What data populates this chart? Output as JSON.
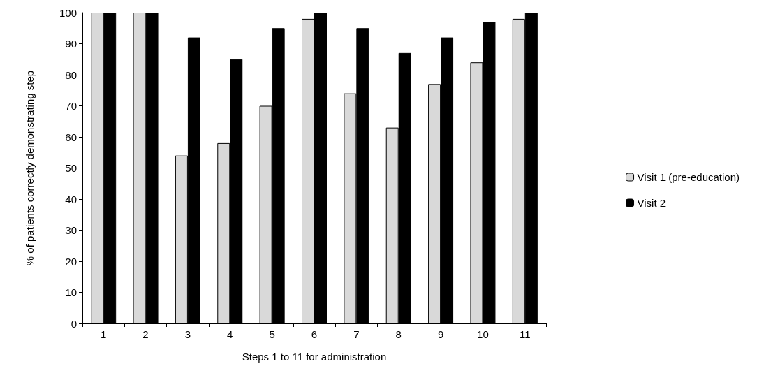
{
  "chart_data": {
    "type": "bar",
    "xlabel": "Steps 1 to 11 for administration",
    "ylabel": "% of patients correctly demonstrating step",
    "categories": [
      "1",
      "2",
      "3",
      "4",
      "5",
      "6",
      "7",
      "8",
      "9",
      "10",
      "11"
    ],
    "series": [
      {
        "name": "Visit 1 (pre-education)",
        "color": "#d9d9d9",
        "values": [
          100,
          100,
          54,
          58,
          70,
          98,
          74,
          63,
          77,
          84,
          98
        ]
      },
      {
        "name": "Visit 2",
        "color": "#000000",
        "values": [
          100,
          100,
          92,
          85,
          95,
          100,
          95,
          87,
          92,
          97,
          100
        ]
      }
    ],
    "ylim": [
      0,
      100
    ],
    "yticks": [
      0,
      10,
      20,
      30,
      40,
      50,
      60,
      70,
      80,
      90,
      100
    ],
    "grid": false,
    "legend": "right"
  }
}
